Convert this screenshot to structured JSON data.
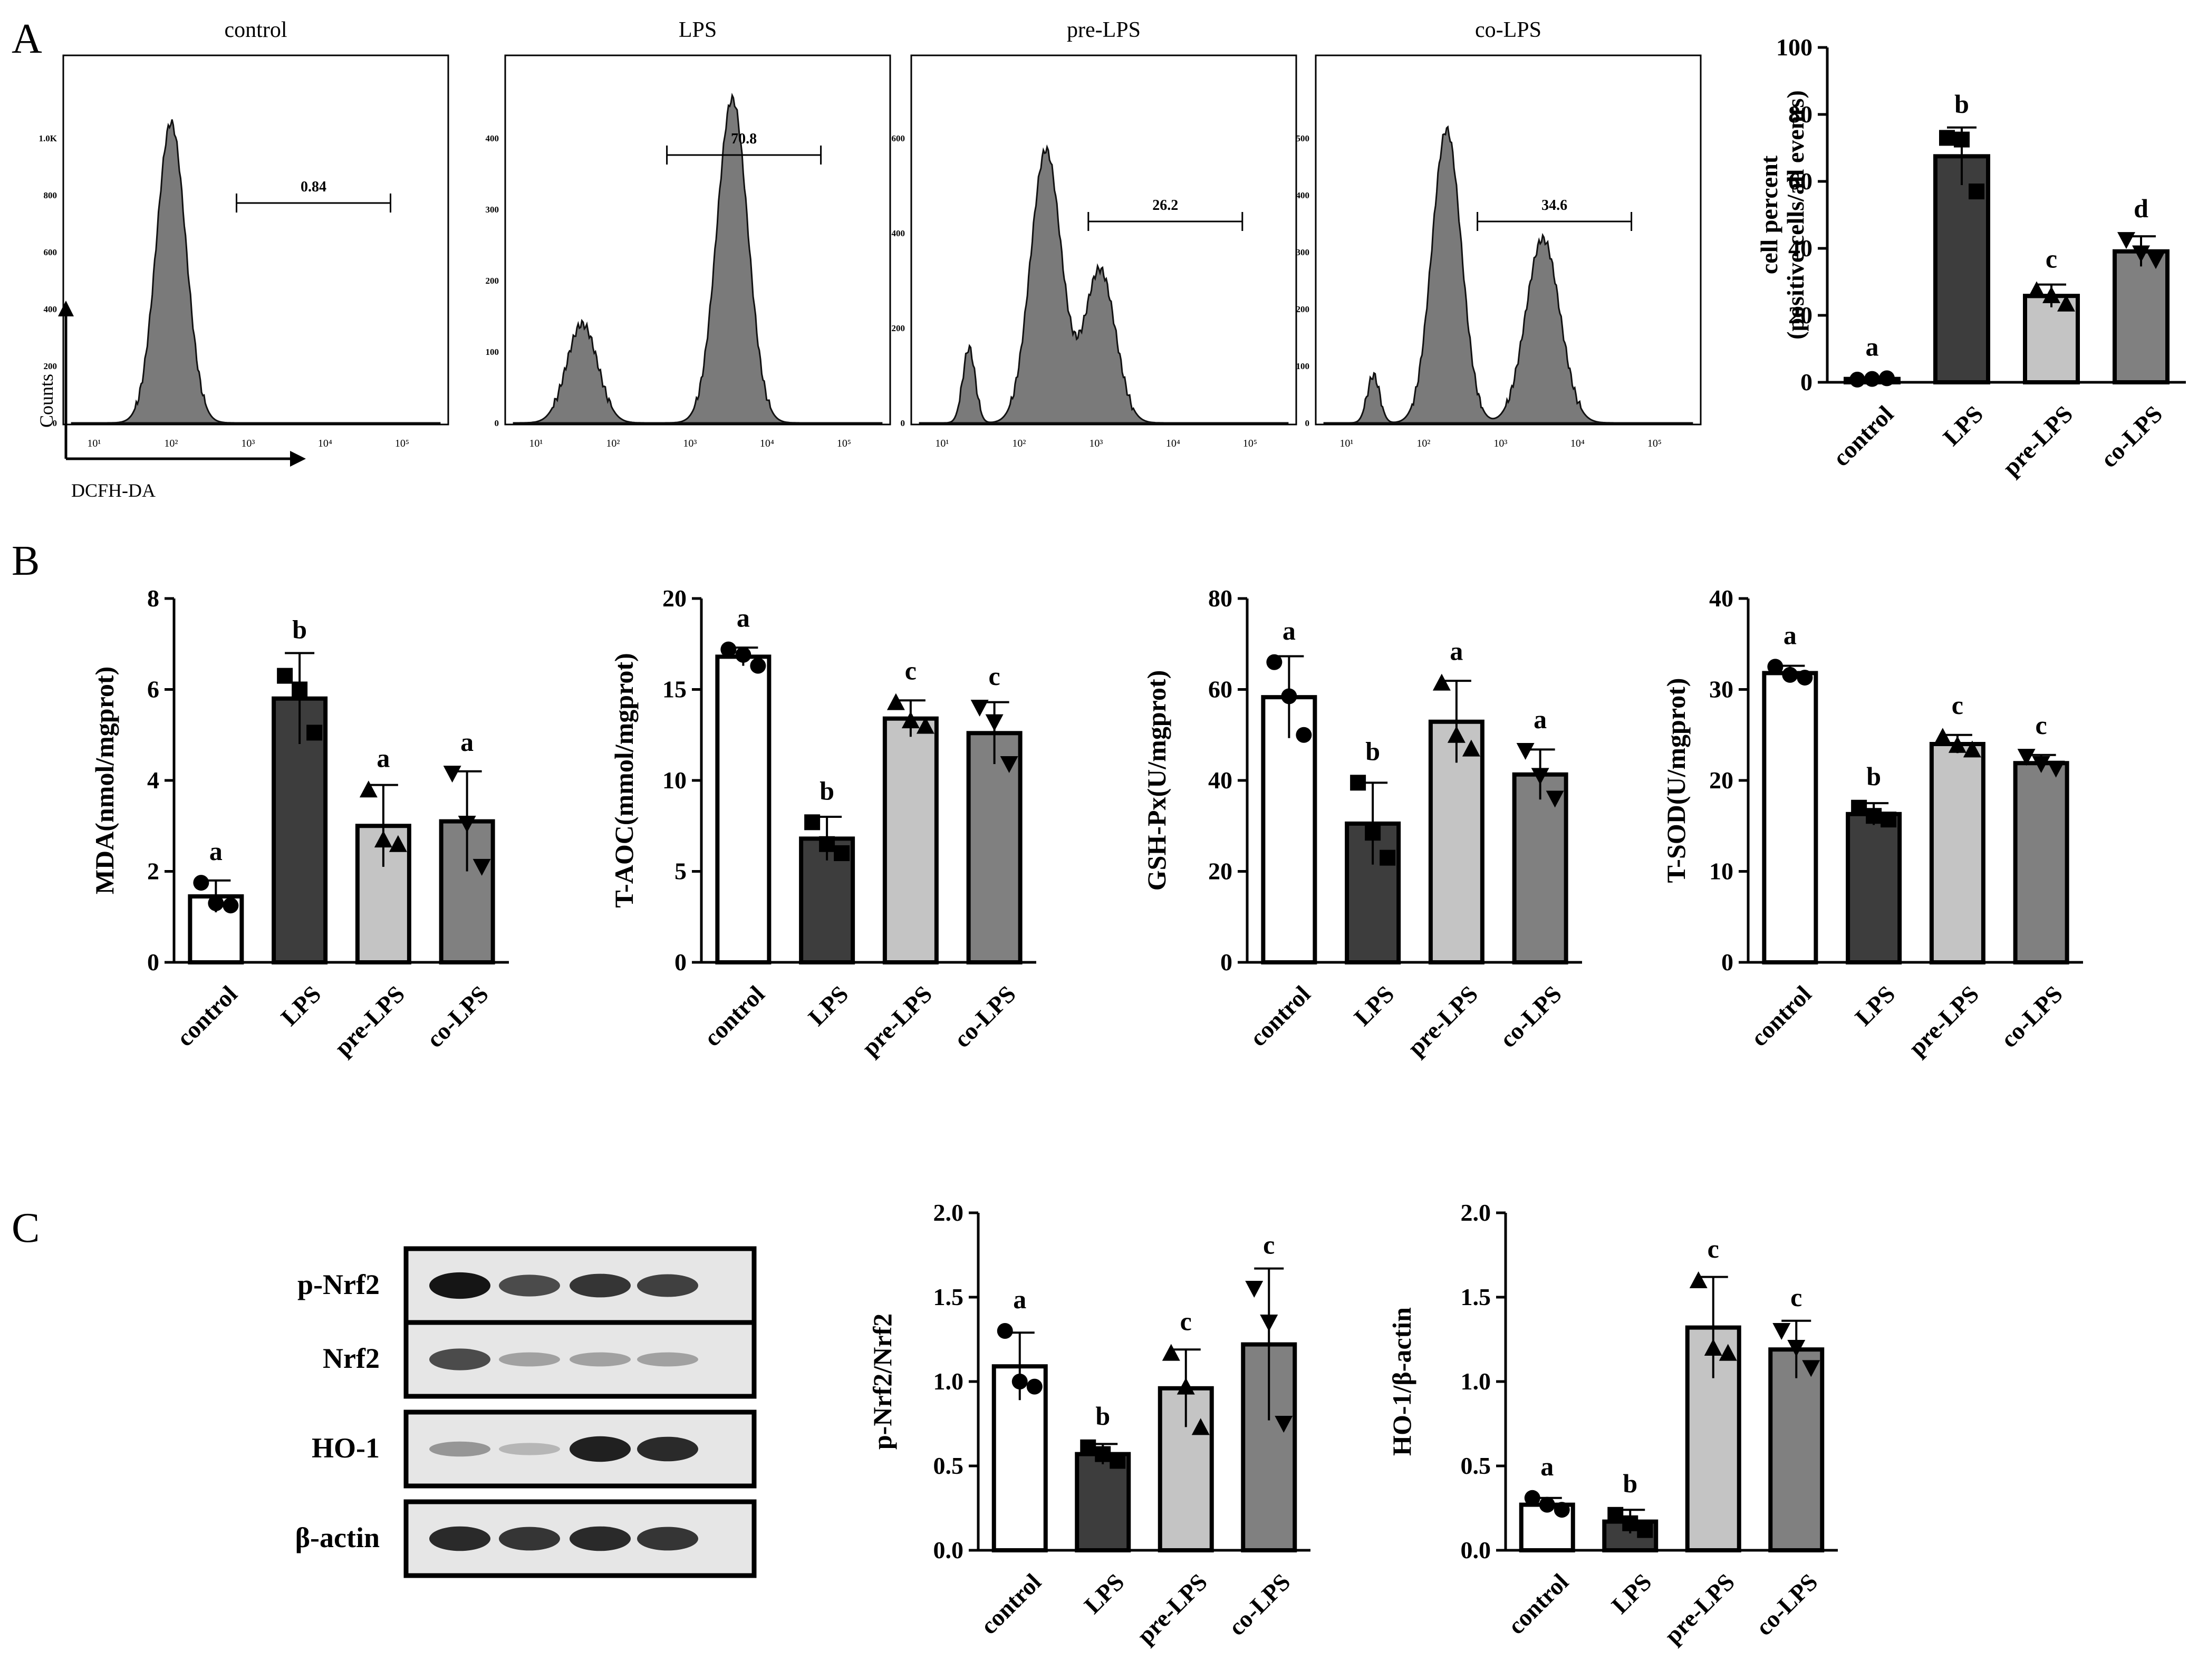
{
  "panels": {
    "A": "A",
    "B": "B",
    "C": "C"
  },
  "groups": [
    "control",
    "LPS",
    "pre-LPS",
    "co-LPS"
  ],
  "colors": {
    "control": "#ffffff",
    "LPS": "#3d3d3d",
    "pre-LPS": "#c4c4c4",
    "co-LPS": "#808080",
    "histogram_fill": "#7a7a7a",
    "ink": "#000000"
  },
  "flow": {
    "x_axis_label": "DCFH-DA",
    "y_axis_label": "Counts",
    "x_ticks": [
      "10¹",
      "10²",
      "10³",
      "10⁴",
      "10⁵"
    ],
    "plots": [
      {
        "title": "control",
        "gate_value": "0.84",
        "y_ticks": [
          "0",
          "200",
          "400",
          "600",
          "800",
          "1.0K"
        ]
      },
      {
        "title": "LPS",
        "gate_value": "70.8",
        "y_ticks": [
          "0",
          "100",
          "200",
          "300",
          "400"
        ]
      },
      {
        "title": "pre-LPS",
        "gate_value": "26.2",
        "y_ticks": [
          "0",
          "200",
          "400",
          "600"
        ]
      },
      {
        "title": "co-LPS",
        "gate_value": "34.6",
        "y_ticks": [
          "0",
          "100",
          "200",
          "300",
          "400",
          "500"
        ]
      }
    ]
  },
  "blot": {
    "rows": [
      {
        "label": "p-Nrf2",
        "intensities": [
          0.95,
          0.7,
          0.8,
          0.75
        ]
      },
      {
        "label": "Nrf2",
        "intensities": [
          0.7,
          0.3,
          0.3,
          0.3
        ]
      },
      {
        "label": "HO-1",
        "intensities": [
          0.35,
          0.2,
          0.9,
          0.85
        ]
      },
      {
        "label": "β-actin",
        "intensities": [
          0.85,
          0.8,
          0.85,
          0.8
        ]
      }
    ]
  },
  "chart_data": [
    {
      "id": "A-cell-percent",
      "type": "bar",
      "title": "",
      "xlabel": "",
      "ylabel": "cell percent",
      "ylabel2": "(positive cells/all events)",
      "categories": [
        "control",
        "LPS",
        "pre-LPS",
        "co-LPS"
      ],
      "values": [
        1,
        67.5,
        25.8,
        39.1
      ],
      "errors": [
        0.3,
        8.6,
        3.4,
        4.5
      ],
      "letters": [
        "a",
        "b",
        "c",
        "d"
      ],
      "ylim": [
        0,
        100
      ],
      "yticks": [
        "0",
        "20",
        "40",
        "60",
        "80",
        "100"
      ],
      "points": [
        [
          0.8,
          1.0,
          1.2
        ],
        [
          73,
          72.5,
          57
        ],
        [
          27.5,
          26,
          23.5
        ],
        [
          42.5,
          38.5,
          36.5
        ]
      ]
    },
    {
      "id": "B-MDA",
      "type": "bar",
      "title": "",
      "xlabel": "",
      "ylabel": "MDA(nmol/mgprot)",
      "categories": [
        "control",
        "LPS",
        "pre-LPS",
        "co-LPS"
      ],
      "values": [
        1.45,
        5.8,
        3.0,
        3.1
      ],
      "errors": [
        0.35,
        1.0,
        0.9,
        1.1
      ],
      "letters": [
        "a",
        "b",
        "a",
        "a"
      ],
      "ylim": [
        0,
        8
      ],
      "yticks": [
        "0",
        "2",
        "4",
        "6",
        "8"
      ],
      "points": [
        [
          1.75,
          1.3,
          1.25
        ],
        [
          6.3,
          6.0,
          5.05
        ],
        [
          3.8,
          2.7,
          2.6
        ],
        [
          4.15,
          3.05,
          2.1
        ]
      ]
    },
    {
      "id": "B-T-AOC",
      "type": "bar",
      "title": "",
      "xlabel": "",
      "ylabel": "T-AOC(mmol/mgprot)",
      "categories": [
        "control",
        "LPS",
        "pre-LPS",
        "co-LPS"
      ],
      "values": [
        16.8,
        6.8,
        13.4,
        12.6
      ],
      "errors": [
        0.5,
        1.2,
        1.0,
        1.7
      ],
      "letters": [
        "a",
        "b",
        "c",
        "c"
      ],
      "ylim": [
        0,
        20
      ],
      "yticks": [
        "0",
        "5",
        "10",
        "15",
        "20"
      ],
      "points": [
        [
          17.2,
          16.9,
          16.3
        ],
        [
          7.7,
          6.5,
          6.0
        ],
        [
          14.3,
          13.3,
          13.0
        ],
        [
          14.0,
          13.2,
          10.9
        ]
      ]
    },
    {
      "id": "B-GSH-Px",
      "type": "bar",
      "title": "",
      "xlabel": "",
      "ylabel": "GSH-Px(U/mgprot)",
      "categories": [
        "control",
        "LPS",
        "pre-LPS",
        "co-LPS"
      ],
      "values": [
        58.3,
        30.5,
        52.9,
        41.3
      ],
      "errors": [
        9.0,
        9.0,
        9.0,
        5.5
      ],
      "letters": [
        "a",
        "b",
        "a",
        "a"
      ],
      "ylim": [
        0,
        80
      ],
      "yticks": [
        "0",
        "20",
        "40",
        "60",
        "80"
      ],
      "points": [
        [
          66,
          58.5,
          50
        ],
        [
          39.5,
          28.5,
          23
        ],
        [
          61.5,
          50,
          47
        ],
        [
          46.5,
          41,
          36
        ]
      ]
    },
    {
      "id": "B-T-SOD",
      "type": "bar",
      "title": "",
      "xlabel": "",
      "ylabel": "T-SOD(U/mgprot)",
      "categories": [
        "control",
        "LPS",
        "pre-LPS",
        "co-LPS"
      ],
      "values": [
        31.8,
        16.3,
        24.0,
        21.9
      ],
      "errors": [
        0.8,
        1.2,
        1.0,
        0.9
      ],
      "letters": [
        "a",
        "b",
        "c",
        "c"
      ],
      "ylim": [
        0,
        40
      ],
      "yticks": [
        "0",
        "10",
        "20",
        "30",
        "40"
      ],
      "points": [
        [
          32.5,
          31.6,
          31.3
        ],
        [
          17.0,
          16.1,
          15.7
        ],
        [
          24.8,
          23.9,
          23.4
        ],
        [
          22.6,
          21.8,
          21.3
        ]
      ]
    },
    {
      "id": "C-pNrf2",
      "type": "bar",
      "title": "",
      "xlabel": "",
      "ylabel": "p-Nrf2/Nrf2",
      "categories": [
        "control",
        "LPS",
        "pre-LPS",
        "co-LPS"
      ],
      "values": [
        1.09,
        0.57,
        0.96,
        1.22
      ],
      "errors": [
        0.2,
        0.06,
        0.23,
        0.45
      ],
      "letters": [
        "a",
        "b",
        "c",
        "c"
      ],
      "ylim": [
        0,
        2.0
      ],
      "yticks": [
        "0.0",
        "0.5",
        "1.0",
        "1.5",
        "2.0"
      ],
      "points": [
        [
          1.3,
          1.0,
          0.97
        ],
        [
          0.61,
          0.57,
          0.53
        ],
        [
          1.17,
          0.97,
          0.73
        ],
        [
          1.55,
          1.35,
          0.75
        ]
      ]
    },
    {
      "id": "C-HO1",
      "type": "bar",
      "title": "",
      "xlabel": "",
      "ylabel": "HO-1/β-actin",
      "categories": [
        "control",
        "LPS",
        "pre-LPS",
        "co-LPS"
      ],
      "values": [
        0.27,
        0.17,
        1.32,
        1.19
      ],
      "errors": [
        0.04,
        0.07,
        0.3,
        0.17
      ],
      "letters": [
        "a",
        "b",
        "c",
        "c"
      ],
      "ylim": [
        0,
        2.0
      ],
      "yticks": [
        "0.0",
        "0.5",
        "1.0",
        "1.5",
        "2.0"
      ],
      "points": [
        [
          0.31,
          0.27,
          0.24
        ],
        [
          0.21,
          0.16,
          0.12
        ],
        [
          1.6,
          1.2,
          1.17
        ],
        [
          1.3,
          1.2,
          1.08
        ]
      ]
    }
  ]
}
